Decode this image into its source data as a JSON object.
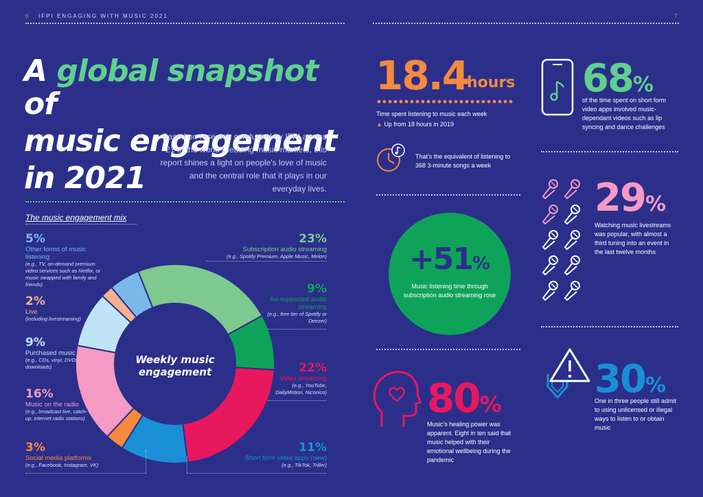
{
  "header": {
    "left_page": "6",
    "left_title": "IFPI ENGAGING WITH MUSIC 2021",
    "right_page": "7"
  },
  "title": {
    "part1": "A ",
    "part2": "global snapshot",
    "part3": " of",
    "line2": "music engagement",
    "line3": "in 2021"
  },
  "intro": "Based on research conducted by IFPI across 21 of the world's leading music markets, this report shines a light on people's love of music and the central role that it plays in our everyday lives.",
  "mix_label": "The music engagement mix",
  "donut_center": "Weekly music engagement",
  "segments": [
    {
      "pct": "5%",
      "name": "Other forms of music listening",
      "desc": "(e.g., TV, on-demand premium video services such as Netflix, or music swapped with family and friends)",
      "color": "#7ab8ea"
    },
    {
      "pct": "2%",
      "name": "Live",
      "desc": "(including livestreaming)",
      "color": "#f7b18c"
    },
    {
      "pct": "9%",
      "name": "Purchased music",
      "desc": "(e.g., CDs, vinyl, DVDs, downloads)",
      "color": "#bfe3f7"
    },
    {
      "pct": "16%",
      "name": "Music on the radio",
      "desc": "(e.g., broadcast live, catch-up, internet radio stations)",
      "color": "#f49ac4"
    },
    {
      "pct": "3%",
      "name": "Social media platforms",
      "desc": "(e.g., Facebook, Instagram, VK)",
      "color": "#f48a3e"
    },
    {
      "pct": "23%",
      "name": "Subscription audio streaming",
      "desc": "(e.g., Spotify Premium, Apple Music, Melon)",
      "color": "#7ec98f"
    },
    {
      "pct": "9%",
      "name": "Ad-supported audio streaming",
      "desc": "(e.g., free tier of Spotify or Deezer)",
      "color": "#0fa35a"
    },
    {
      "pct": "22%",
      "name": "Video streaming",
      "desc": "(e.g., YouTube, DailyMotion, Niconico)",
      "color": "#e8185f"
    },
    {
      "pct": "11%",
      "name": "Short form video apps (new)",
      "desc": "(e.g., TikTok, Triller)",
      "color": "#1a8fd6"
    }
  ],
  "stat_hours": {
    "value": "18.4",
    "unit": "hours",
    "label": "Time spent listening to music each week",
    "change": "Up from 18 hours in 2019",
    "equiv": "That's the equivalent of listening to 368 3-minute songs a week"
  },
  "stat_51": {
    "value": "+51",
    "unit": "%",
    "label": "Music listening time through subscription audio streaming rose"
  },
  "stat_80": {
    "value": "80",
    "unit": "%",
    "label": "Music's healing power was apparent. Eight in ten said that music helped with their emotional wellbeing during the pandemic"
  },
  "stat_68": {
    "value": "68",
    "unit": "%",
    "label": "of the time spent on short form video apps involved music-dependant videos such as lip syncing and dance challenges"
  },
  "stat_29": {
    "value": "29",
    "unit": "%",
    "label": "Watching music livestreams was popular, with almost a third tuning into an event in the last twelve months"
  },
  "stat_30": {
    "value": "30",
    "unit": "%",
    "label": "One in three people still admit to using unlicensed or illegal ways to listen to or obtain music"
  },
  "colors": {
    "bg": "#2b2f8a",
    "orange": "#f48a3e",
    "green": "#5fd08e",
    "pink": "#f49ac4",
    "blue": "#1a8fd6",
    "red": "#e8185f"
  }
}
